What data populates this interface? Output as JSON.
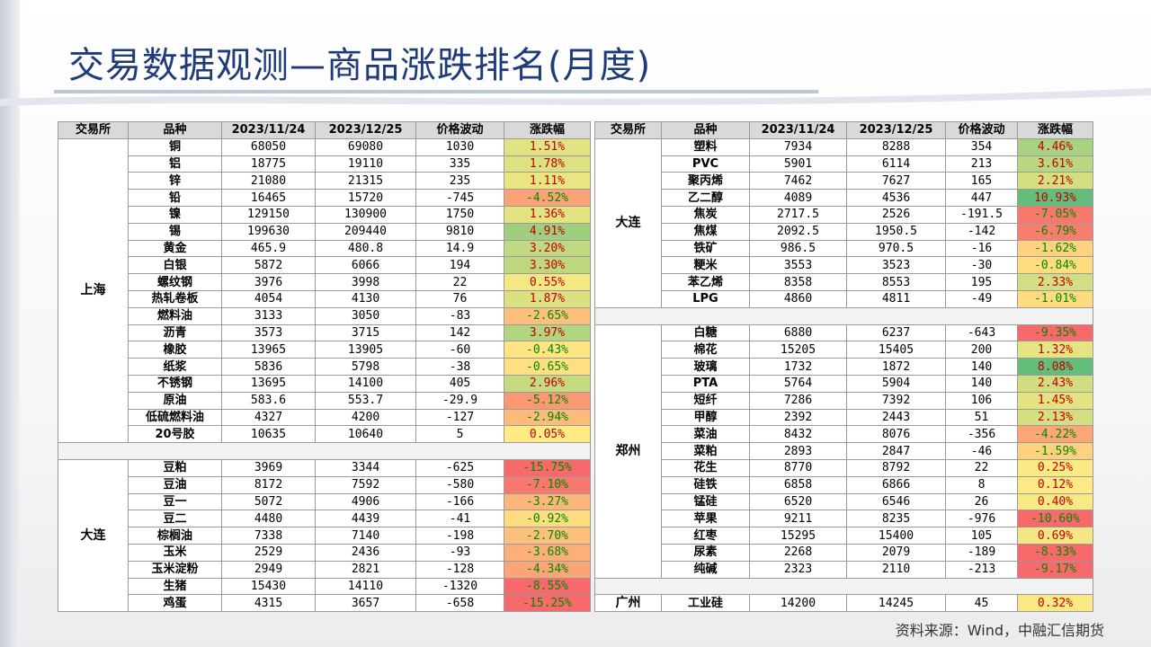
{
  "page": {
    "title": "交易数据观测—商品涨跌排名(月度)",
    "source": "资料来源：Wind，中融汇信期货"
  },
  "headers": [
    "交易所",
    "品种",
    "2023/11/24",
    "2023/12/25",
    "价格波动",
    "涨跌幅"
  ],
  "colors": {
    "up_text": "#c00000",
    "down_text": "#008a00",
    "scale_red": "#f8696b",
    "scale_yellow": "#ffeb84",
    "scale_green": "#63be7b"
  },
  "left": {
    "groups": [
      {
        "exchange": "上海",
        "rows": [
          {
            "name": "铜",
            "v1": "68050",
            "v2": "69080",
            "chg": "1030",
            "pct": "1.51%",
            "p": 1.51
          },
          {
            "name": "铝",
            "v1": "18775",
            "v2": "19110",
            "chg": "335",
            "pct": "1.78%",
            "p": 1.78
          },
          {
            "name": "锌",
            "v1": "21080",
            "v2": "21315",
            "chg": "235",
            "pct": "1.11%",
            "p": 1.11
          },
          {
            "name": "铅",
            "v1": "16465",
            "v2": "15720",
            "chg": "-745",
            "pct": "-4.52%",
            "p": -4.52
          },
          {
            "name": "镍",
            "v1": "129150",
            "v2": "130900",
            "chg": "1750",
            "pct": "1.36%",
            "p": 1.36
          },
          {
            "name": "锡",
            "v1": "199630",
            "v2": "209440",
            "chg": "9810",
            "pct": "4.91%",
            "p": 4.91
          },
          {
            "name": "黄金",
            "v1": "465.9",
            "v2": "480.8",
            "chg": "14.9",
            "pct": "3.20%",
            "p": 3.2
          },
          {
            "name": "白银",
            "v1": "5872",
            "v2": "6066",
            "chg": "194",
            "pct": "3.30%",
            "p": 3.3
          },
          {
            "name": "螺纹钢",
            "v1": "3976",
            "v2": "3998",
            "chg": "22",
            "pct": "0.55%",
            "p": 0.55
          },
          {
            "name": "热轧卷板",
            "v1": "4054",
            "v2": "4130",
            "chg": "76",
            "pct": "1.87%",
            "p": 1.87
          },
          {
            "name": "燃料油",
            "v1": "3133",
            "v2": "3050",
            "chg": "-83",
            "pct": "-2.65%",
            "p": -2.65
          },
          {
            "name": "沥青",
            "v1": "3573",
            "v2": "3715",
            "chg": "142",
            "pct": "3.97%",
            "p": 3.97
          },
          {
            "name": "橡胶",
            "v1": "13965",
            "v2": "13905",
            "chg": "-60",
            "pct": "-0.43%",
            "p": -0.43
          },
          {
            "name": "纸浆",
            "v1": "5836",
            "v2": "5798",
            "chg": "-38",
            "pct": "-0.65%",
            "p": -0.65
          },
          {
            "name": "不锈钢",
            "v1": "13695",
            "v2": "14100",
            "chg": "405",
            "pct": "2.96%",
            "p": 2.96
          },
          {
            "name": "原油",
            "v1": "583.6",
            "v2": "553.7",
            "chg": "-29.9",
            "pct": "-5.12%",
            "p": -5.12
          },
          {
            "name": "低硫燃料油",
            "v1": "4327",
            "v2": "4200",
            "chg": "-127",
            "pct": "-2.94%",
            "p": -2.94
          },
          {
            "name": "20号胶",
            "v1": "10635",
            "v2": "10640",
            "chg": "5",
            "pct": "0.05%",
            "p": 0.05
          }
        ]
      },
      {
        "exchange": "大连",
        "rows": [
          {
            "name": "豆粕",
            "v1": "3969",
            "v2": "3344",
            "chg": "-625",
            "pct": "-15.75%",
            "p": -15.75
          },
          {
            "name": "豆油",
            "v1": "8172",
            "v2": "7592",
            "chg": "-580",
            "pct": "-7.10%",
            "p": -7.1
          },
          {
            "name": "豆一",
            "v1": "5072",
            "v2": "4906",
            "chg": "-166",
            "pct": "-3.27%",
            "p": -3.27
          },
          {
            "name": "豆二",
            "v1": "4480",
            "v2": "4439",
            "chg": "-41",
            "pct": "-0.92%",
            "p": -0.92
          },
          {
            "name": "棕榈油",
            "v1": "7338",
            "v2": "7140",
            "chg": "-198",
            "pct": "-2.70%",
            "p": -2.7
          },
          {
            "name": "玉米",
            "v1": "2529",
            "v2": "2436",
            "chg": "-93",
            "pct": "-3.68%",
            "p": -3.68
          },
          {
            "name": "玉米淀粉",
            "v1": "2949",
            "v2": "2821",
            "chg": "-128",
            "pct": "-4.34%",
            "p": -4.34
          },
          {
            "name": "生猪",
            "v1": "15430",
            "v2": "14110",
            "chg": "-1320",
            "pct": "-8.55%",
            "p": -8.55
          },
          {
            "name": "鸡蛋",
            "v1": "4315",
            "v2": "3657",
            "chg": "-658",
            "pct": "-15.25%",
            "p": -15.25
          }
        ]
      }
    ]
  },
  "right": {
    "groups": [
      {
        "exchange": "大连",
        "rows": [
          {
            "name": "塑料",
            "v1": "7934",
            "v2": "8288",
            "chg": "354",
            "pct": "4.46%",
            "p": 4.46
          },
          {
            "name": "PVC",
            "v1": "5901",
            "v2": "6114",
            "chg": "213",
            "pct": "3.61%",
            "p": 3.61
          },
          {
            "name": "聚丙烯",
            "v1": "7462",
            "v2": "7627",
            "chg": "165",
            "pct": "2.21%",
            "p": 2.21
          },
          {
            "name": "乙二醇",
            "v1": "4089",
            "v2": "4536",
            "chg": "447",
            "pct": "10.93%",
            "p": 10.93
          },
          {
            "name": "焦炭",
            "v1": "2717.5",
            "v2": "2526",
            "chg": "-191.5",
            "pct": "-7.05%",
            "p": -7.05
          },
          {
            "name": "焦煤",
            "v1": "2092.5",
            "v2": "1950.5",
            "chg": "-142",
            "pct": "-6.79%",
            "p": -6.79
          },
          {
            "name": "铁矿",
            "v1": "986.5",
            "v2": "970.5",
            "chg": "-16",
            "pct": "-1.62%",
            "p": -1.62
          },
          {
            "name": "粳米",
            "v1": "3553",
            "v2": "3523",
            "chg": "-30",
            "pct": "-0.84%",
            "p": -0.84
          },
          {
            "name": "苯乙烯",
            "v1": "8358",
            "v2": "8553",
            "chg": "195",
            "pct": "2.33%",
            "p": 2.33
          },
          {
            "name": "LPG",
            "v1": "4860",
            "v2": "4811",
            "chg": "-49",
            "pct": "-1.01%",
            "p": -1.01
          }
        ]
      },
      {
        "exchange": "郑州",
        "rows": [
          {
            "name": "白糖",
            "v1": "6880",
            "v2": "6237",
            "chg": "-643",
            "pct": "-9.35%",
            "p": -9.35
          },
          {
            "name": "棉花",
            "v1": "15205",
            "v2": "15405",
            "chg": "200",
            "pct": "1.32%",
            "p": 1.32
          },
          {
            "name": "玻璃",
            "v1": "1732",
            "v2": "1872",
            "chg": "140",
            "pct": "8.08%",
            "p": 8.08
          },
          {
            "name": "PTA",
            "v1": "5764",
            "v2": "5904",
            "chg": "140",
            "pct": "2.43%",
            "p": 2.43
          },
          {
            "name": "短纤",
            "v1": "7286",
            "v2": "7392",
            "chg": "106",
            "pct": "1.45%",
            "p": 1.45
          },
          {
            "name": "甲醇",
            "v1": "2392",
            "v2": "2443",
            "chg": "51",
            "pct": "2.13%",
            "p": 2.13
          },
          {
            "name": "菜油",
            "v1": "8432",
            "v2": "8076",
            "chg": "-356",
            "pct": "-4.22%",
            "p": -4.22
          },
          {
            "name": "菜粕",
            "v1": "2893",
            "v2": "2847",
            "chg": "-46",
            "pct": "-1.59%",
            "p": -1.59
          },
          {
            "name": "花生",
            "v1": "8770",
            "v2": "8792",
            "chg": "22",
            "pct": "0.25%",
            "p": 0.25
          },
          {
            "name": "硅铁",
            "v1": "6858",
            "v2": "6866",
            "chg": "8",
            "pct": "0.12%",
            "p": 0.12
          },
          {
            "name": "锰硅",
            "v1": "6520",
            "v2": "6546",
            "chg": "26",
            "pct": "0.40%",
            "p": 0.4
          },
          {
            "name": "苹果",
            "v1": "9211",
            "v2": "8235",
            "chg": "-976",
            "pct": "-10.60%",
            "p": -10.6
          },
          {
            "name": "红枣",
            "v1": "15295",
            "v2": "15400",
            "chg": "105",
            "pct": "0.69%",
            "p": 0.69
          },
          {
            "name": "尿素",
            "v1": "2268",
            "v2": "2079",
            "chg": "-189",
            "pct": "-8.33%",
            "p": -8.33
          },
          {
            "name": "纯碱",
            "v1": "2323",
            "v2": "2110",
            "chg": "-213",
            "pct": "-9.17%",
            "p": -9.17
          }
        ]
      },
      {
        "exchange": "广州",
        "rows": [
          {
            "name": "工业硅",
            "v1": "14200",
            "v2": "14245",
            "chg": "45",
            "pct": "0.32%",
            "p": 0.32
          }
        ]
      }
    ]
  }
}
